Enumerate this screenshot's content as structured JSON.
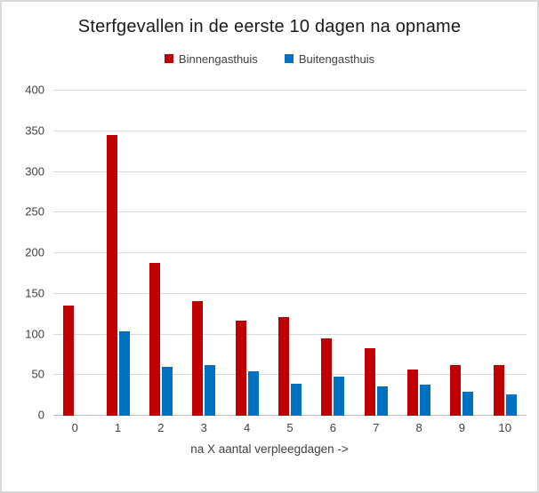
{
  "chart_data": {
    "type": "bar",
    "title": "Sterfgevallen in de eerste 10 dagen na opname",
    "categories": [
      "0",
      "1",
      "2",
      "3",
      "4",
      "5",
      "6",
      "7",
      "8",
      "9",
      "10"
    ],
    "series": [
      {
        "name": "Binnengasthuis",
        "color": "#C00000",
        "values": [
          135,
          345,
          188,
          141,
          117,
          121,
          95,
          83,
          57,
          62,
          62
        ]
      },
      {
        "name": "Buitengasthuis",
        "color": "#0070C0",
        "values": [
          0,
          104,
          60,
          62,
          55,
          39,
          48,
          36,
          38,
          30,
          26
        ]
      }
    ],
    "xlabel": "na X aantal verpleegdagen ->",
    "ylabel": "",
    "ylim": [
      0,
      400
    ],
    "yticks": [
      0,
      50,
      100,
      150,
      200,
      250,
      300,
      350,
      400
    ],
    "grid": true,
    "legend_position": "top-center"
  },
  "colors": {
    "gridline": "#D9D9D9",
    "axis_line": "#BFBFBF",
    "tick_text": "#404040",
    "title_text": "#1A1A1A",
    "background": "#FFFFFF",
    "frame_border": "#D9D9D9"
  }
}
